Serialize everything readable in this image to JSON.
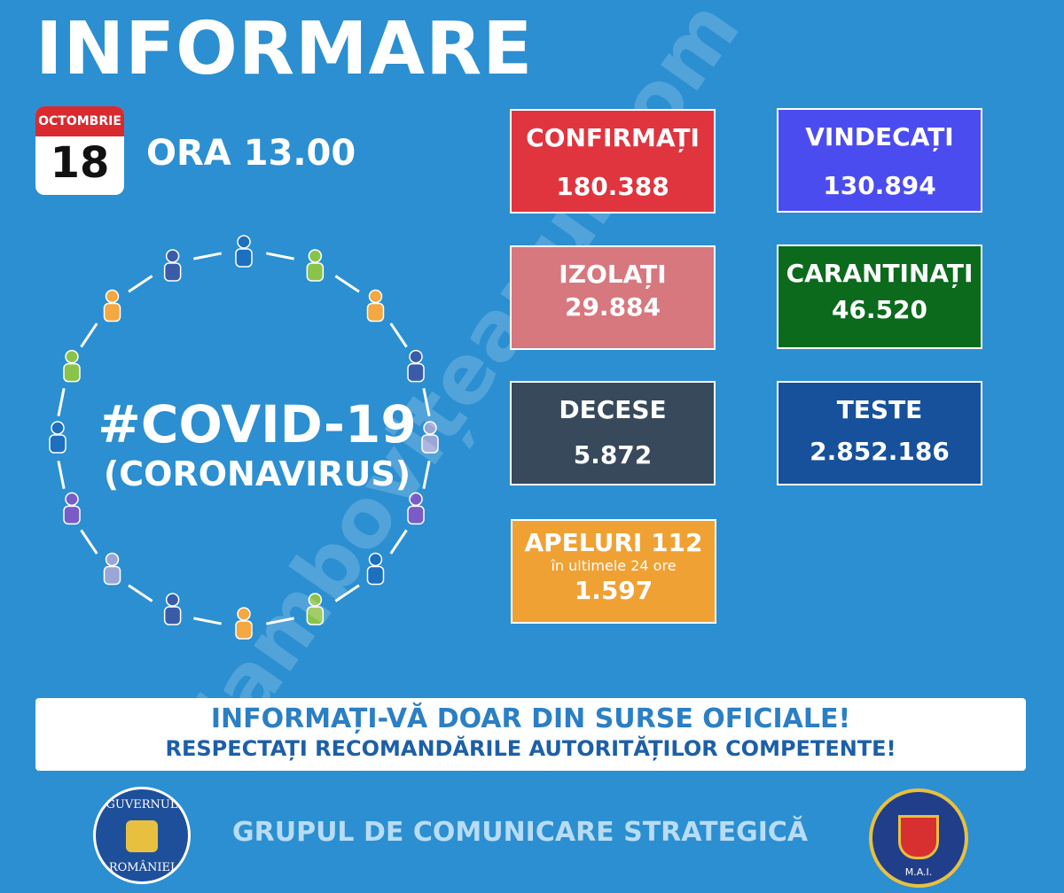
{
  "header": {
    "title": "INFORMARE",
    "month": "OCTOMBRIE",
    "day": "18",
    "time": "ORA 13.00"
  },
  "hashtag": {
    "title": "#COVID-19",
    "subtitle": "(CORONAVIRUS)"
  },
  "cards": [
    {
      "label": "CONFIRMAȚI",
      "value": "180.388"
    },
    {
      "label": "VINDECAȚI",
      "value": "130.894"
    },
    {
      "label": "IZOLAȚI",
      "value": "29.884"
    },
    {
      "label": "CARANTINAȚI",
      "value": "46.520"
    },
    {
      "label": "DECESE",
      "value": "5.872"
    },
    {
      "label": "TESTE",
      "value": "2.852.186"
    },
    {
      "label": "APELURI 112",
      "note": "în ultimele 24 ore",
      "value": "1.597"
    }
  ],
  "banner": {
    "line1": "INFORMAȚI-VĂ DOAR DIN SURSE OFICIALE!",
    "line2": "RESPECTAȚI RECOMANDĂRILE AUTORITĂȚILOR COMPETENTE!"
  },
  "footer": {
    "text": "GRUPUL DE COMUNICARE STRATEGICĂ",
    "logo_left_top": "GUVERNUL",
    "logo_left_bottom": "ROMÂNIEI",
    "logo_right_bottom": "M.A.I."
  },
  "watermark": "dambovițeanul.com"
}
